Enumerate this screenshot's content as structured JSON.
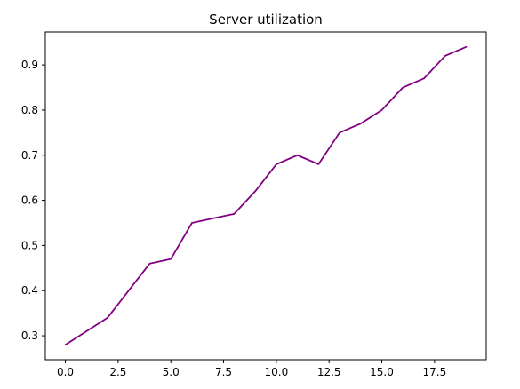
{
  "chart_data": {
    "type": "line",
    "title": "Server utilization",
    "xlabel": "",
    "ylabel": "",
    "xlim": [
      -0.95,
      19.95
    ],
    "ylim": [
      0.247,
      0.973
    ],
    "x_ticks": [
      0.0,
      2.5,
      5.0,
      7.5,
      10.0,
      12.5,
      15.0,
      17.5
    ],
    "x_tick_labels": [
      "0.0",
      "2.5",
      "5.0",
      "7.5",
      "10.0",
      "12.5",
      "15.0",
      "17.5"
    ],
    "y_ticks": [
      0.3,
      0.4,
      0.5,
      0.6,
      0.7,
      0.8,
      0.9
    ],
    "y_tick_labels": [
      "0.3",
      "0.4",
      "0.5",
      "0.6",
      "0.7",
      "0.8",
      "0.9"
    ],
    "grid": false,
    "series": [
      {
        "color": "#800080",
        "x": [
          0,
          1,
          2,
          3,
          4,
          5,
          6,
          7,
          8,
          9,
          10,
          11,
          12,
          13,
          14,
          15,
          16,
          17,
          18,
          19
        ],
        "y": [
          0.28,
          0.31,
          0.34,
          0.4,
          0.46,
          0.47,
          0.55,
          0.56,
          0.57,
          0.62,
          0.68,
          0.7,
          0.68,
          0.75,
          0.77,
          0.8,
          0.85,
          0.87,
          0.92,
          0.94
        ]
      }
    ]
  }
}
